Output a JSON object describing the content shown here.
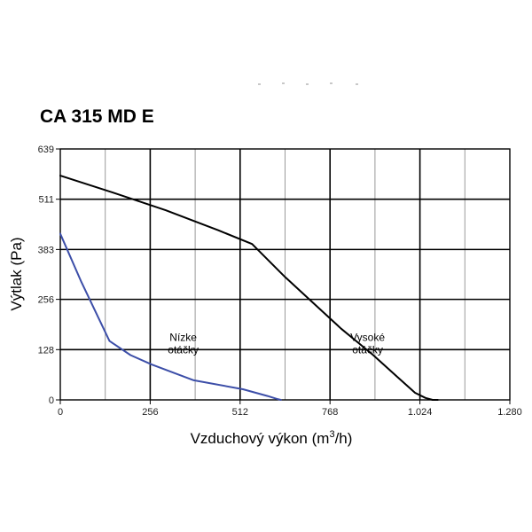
{
  "chart_data": {
    "type": "line",
    "title": "CA 315 MD E",
    "xlabel": "Vzduchový výkon (m",
    "xlabel_sup": "3",
    "xlabel_suffix": "/h)",
    "ylabel": "Výtlak (Pa)",
    "xlim": [
      0,
      1280
    ],
    "ylim": [
      0,
      639
    ],
    "x_ticks": [
      0,
      256,
      512,
      768,
      1024,
      1280
    ],
    "x_tick_labels": [
      "0",
      "256",
      "512",
      "768",
      "1.024",
      "1.280"
    ],
    "y_ticks": [
      0,
      128,
      256,
      383,
      511,
      639
    ],
    "y_tick_labels": [
      "0",
      "128",
      "256",
      "383",
      "511",
      "639"
    ],
    "minor_x_ticks": [
      128,
      384,
      640,
      896,
      1152
    ],
    "grid": true,
    "series": [
      {
        "name": "Vysoké otáčky",
        "color": "#000000",
        "x": [
          0,
          150,
          300,
          450,
          546,
          640,
          720,
          800,
          890,
          960,
          1010,
          1040,
          1060,
          1075
        ],
        "y": [
          571,
          528,
          483,
          432,
          397,
          313,
          247,
          181,
          115,
          58,
          18,
          5,
          0,
          0
        ]
      },
      {
        "name": "Nízke otáčky",
        "color": "#3C4EA8",
        "x": [
          0,
          60,
          140,
          200,
          260,
          380,
          520,
          590,
          615,
          628
        ],
        "y": [
          423,
          300,
          150,
          114,
          90,
          50,
          27,
          10,
          3,
          0
        ]
      }
    ],
    "annotations": [
      {
        "line1": "Nízke",
        "line2": "otáčky",
        "x": 350,
        "y": 137
      },
      {
        "line1": "Vysoké",
        "line2": "otáčky",
        "x": 875,
        "y": 137
      }
    ]
  }
}
